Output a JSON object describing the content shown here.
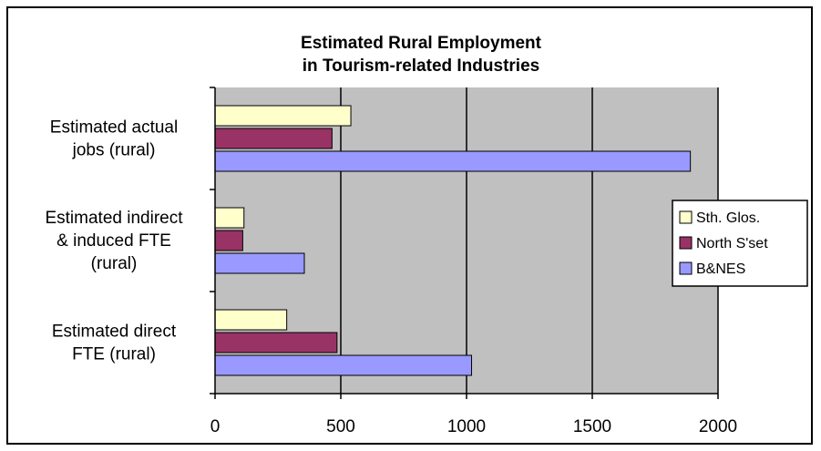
{
  "chart_data": {
    "type": "bar",
    "orientation": "horizontal",
    "title": [
      "Estimated Rural Employment",
      "in Tourism-related Industries"
    ],
    "categories": [
      [
        "Estimated actual",
        "jobs  (rural)"
      ],
      [
        "Estimated indirect",
        "&  induced FTE",
        "(rural)"
      ],
      [
        "Estimated direct",
        "FTE  (rural)"
      ]
    ],
    "series": [
      {
        "name": "Sth. Glos.",
        "color": "#FFFFCC",
        "values": [
          540,
          115,
          285
        ]
      },
      {
        "name": "North S'set",
        "color": "#993366",
        "values": [
          465,
          110,
          485
        ]
      },
      {
        "name": "B&NES",
        "color": "#9999FF",
        "values": [
          1890,
          355,
          1020
        ]
      }
    ],
    "xlim": [
      0,
      2000
    ],
    "xticks": [
      "0",
      "500",
      "1000",
      "1500",
      "2000"
    ],
    "grid": true,
    "plot_background": "#C0C0C0",
    "legend_position": "right"
  }
}
